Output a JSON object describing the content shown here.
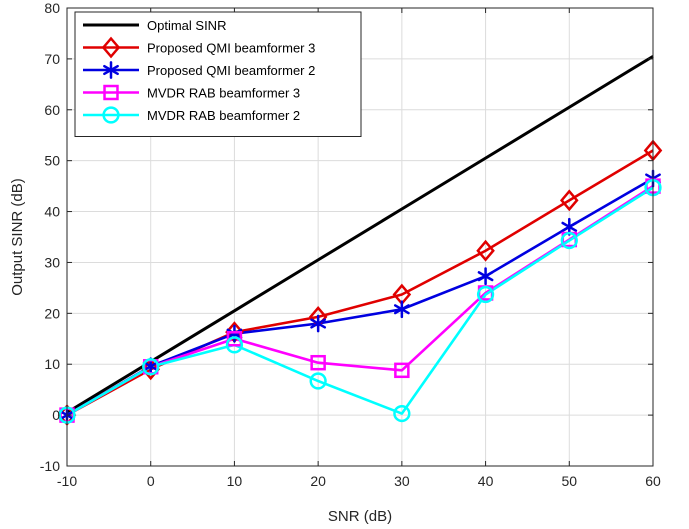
{
  "chart_data": {
    "type": "line",
    "title": "",
    "xlabel": "SNR (dB)",
    "ylabel": "Output SINR (dB)",
    "xlim": [
      -10,
      60
    ],
    "ylim": [
      -10,
      80
    ],
    "xticks": [
      -10,
      0,
      10,
      20,
      30,
      40,
      50,
      60
    ],
    "yticks": [
      -10,
      0,
      10,
      20,
      30,
      40,
      50,
      60,
      70,
      80
    ],
    "grid": true,
    "legend_position": "top-left",
    "series": [
      {
        "name": "Optimal SINR",
        "color": "#000000",
        "marker": "none",
        "x": [
          -10,
          0,
          10,
          20,
          30,
          40,
          50,
          60
        ],
        "y": [
          0.5,
          10.5,
          20.5,
          30.5,
          40.5,
          50.5,
          60.5,
          70.5
        ]
      },
      {
        "name": "Proposed QMI beamformer 3",
        "color": "#e00000",
        "marker": "diamond",
        "x": [
          -10,
          0,
          10,
          20,
          30,
          40,
          50,
          60
        ],
        "y": [
          0,
          9,
          16.3,
          19.3,
          23.7,
          32.3,
          42.2,
          52
        ]
      },
      {
        "name": "Proposed QMI beamformer 2",
        "color": "#0000e0",
        "marker": "asterisk",
        "x": [
          -10,
          0,
          10,
          20,
          30,
          40,
          50,
          60
        ],
        "y": [
          0,
          9.6,
          16,
          18,
          20.8,
          27.3,
          37,
          46.5
        ]
      },
      {
        "name": "MVDR RAB beamformer 3",
        "color": "#ff00ff",
        "marker": "square",
        "x": [
          -10,
          0,
          10,
          20,
          30,
          40,
          50,
          60
        ],
        "y": [
          0,
          9.5,
          15,
          10.3,
          8.8,
          24,
          34.5,
          45
        ]
      },
      {
        "name": "MVDR RAB beamformer 2",
        "color": "#00ffff",
        "marker": "circle",
        "x": [
          -10,
          0,
          10,
          20,
          30,
          40,
          50,
          60
        ],
        "y": [
          0,
          9.5,
          13.8,
          6.7,
          0.3,
          23.7,
          34.3,
          44.7
        ]
      }
    ]
  }
}
